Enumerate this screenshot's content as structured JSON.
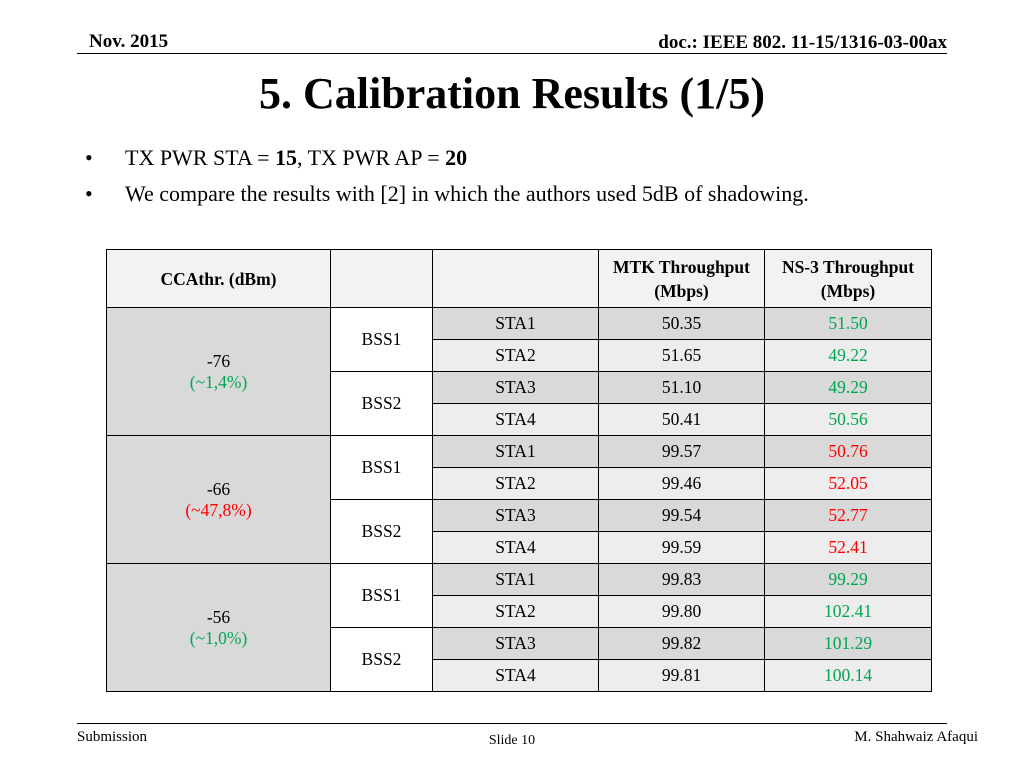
{
  "header": {
    "date": "Nov. 2015",
    "doc_id": "doc.: IEEE 802. 11-15/1316-03-00ax"
  },
  "title": "5. Calibration Results (1/5)",
  "bullets": [
    {
      "bullet": "•",
      "parts": [
        {
          "text": "TX PWR STA = ",
          "bold": false
        },
        {
          "text": "15",
          "bold": true
        },
        {
          "text": ", TX PWR AP = ",
          "bold": false
        },
        {
          "text": "20",
          "bold": true
        }
      ]
    },
    {
      "bullet": "•",
      "parts": [
        {
          "text": "We compare the results with [2] in which the authors used 5dB of shadowing.",
          "bold": false
        }
      ]
    }
  ],
  "table": {
    "headers": [
      "CCAthr. (dBm)",
      "",
      "",
      "MTK Throughput (Mbps)",
      "NS-3 Throughput (Mbps)"
    ],
    "groups": [
      {
        "cca": "-76",
        "pct": "(~1,4%)",
        "pct_color": "green",
        "bss": [
          {
            "name": "BSS1",
            "rows": [
              {
                "sta": "STA1",
                "mtk": "50.35",
                "ns3": "51.50"
              },
              {
                "sta": "STA2",
                "mtk": "51.65",
                "ns3": "49.22"
              }
            ]
          },
          {
            "name": "BSS2",
            "rows": [
              {
                "sta": "STA3",
                "mtk": "51.10",
                "ns3": "49.29"
              },
              {
                "sta": "STA4",
                "mtk": "50.41",
                "ns3": "50.56"
              }
            ]
          }
        ]
      },
      {
        "cca": "-66",
        "pct": "(~47,8%)",
        "pct_color": "red",
        "bss": [
          {
            "name": "BSS1",
            "rows": [
              {
                "sta": "STA1",
                "mtk": "99.57",
                "ns3": "50.76"
              },
              {
                "sta": "STA2",
                "mtk": "99.46",
                "ns3": "52.05"
              }
            ]
          },
          {
            "name": "BSS2",
            "rows": [
              {
                "sta": "STA3",
                "mtk": "99.54",
                "ns3": "52.77"
              },
              {
                "sta": "STA4",
                "mtk": "99.59",
                "ns3": "52.41"
              }
            ]
          }
        ]
      },
      {
        "cca": "-56",
        "pct": "(~1,0%)",
        "pct_color": "green",
        "bss": [
          {
            "name": "BSS1",
            "rows": [
              {
                "sta": "STA1",
                "mtk": "99.83",
                "ns3": "99.29"
              },
              {
                "sta": "STA2",
                "mtk": "99.80",
                "ns3": "102.41"
              }
            ]
          },
          {
            "name": "BSS2",
            "rows": [
              {
                "sta": "STA3",
                "mtk": "99.82",
                "ns3": "101.29"
              },
              {
                "sta": "STA4",
                "mtk": "99.81",
                "ns3": "100.14"
              }
            ]
          }
        ]
      }
    ]
  },
  "colors": {
    "green": "#00a650",
    "red": "#ff0000"
  },
  "footer": {
    "left": "Submission",
    "center": "Slide 10",
    "right": "M. Shahwaiz Afaqui"
  }
}
